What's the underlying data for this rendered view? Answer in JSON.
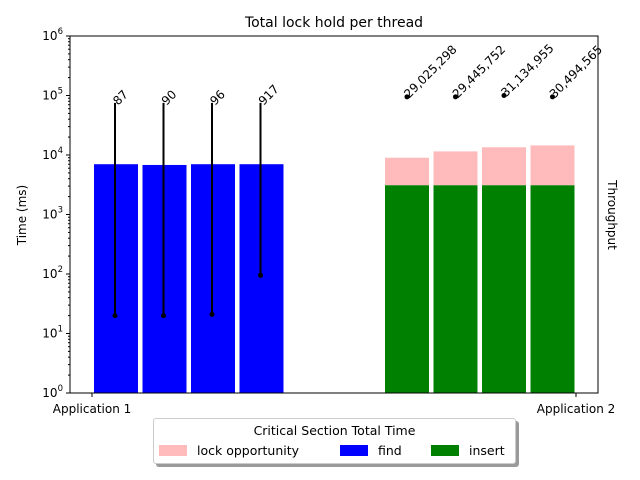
{
  "chart_data": {
    "type": "bar",
    "title": "Total lock hold per thread",
    "ylabel": "Time (ms)",
    "ylabel_right": "Throughput",
    "y_scale": "log",
    "ylim": [
      1,
      1000000
    ],
    "y_ticks": [
      {
        "value": 1,
        "base": "10",
        "exp": "0"
      },
      {
        "value": 10,
        "base": "10",
        "exp": "1"
      },
      {
        "value": 100,
        "base": "10",
        "exp": "2"
      },
      {
        "value": 1000,
        "base": "10",
        "exp": "3"
      },
      {
        "value": 10000,
        "base": "10",
        "exp": "4"
      },
      {
        "value": 100000,
        "base": "10",
        "exp": "5"
      },
      {
        "value": 1000000,
        "base": "10",
        "exp": "6"
      }
    ],
    "categories": [
      "Application 1",
      "Application 2"
    ],
    "legend": {
      "title": "Critical Section Total Time",
      "placement": "bottom-center",
      "entries": [
        {
          "label": "lock opportunity",
          "color": "#ffbbbb"
        },
        {
          "label": "find",
          "color": "#0000ff"
        },
        {
          "label": "insert",
          "color": "#008000"
        }
      ]
    },
    "groups": [
      {
        "category": "Application 1",
        "threads": [
          {
            "find": 7000,
            "error_low": 20,
            "error_high": 75000,
            "label": "87"
          },
          {
            "find": 6800,
            "error_low": 20,
            "error_high": 75000,
            "label": "90"
          },
          {
            "find": 7000,
            "error_low": 21,
            "error_high": 75000,
            "label": "96"
          },
          {
            "find": 7000,
            "error_low": 95,
            "error_high": 75000,
            "label": "917"
          }
        ]
      },
      {
        "category": "Application 2",
        "threads": [
          {
            "insert": 3100,
            "lock_opportunity_top": 9000,
            "point": 95000,
            "label": "29,025,298"
          },
          {
            "insert": 3100,
            "lock_opportunity_top": 11500,
            "point": 95000,
            "label": "29,445,752"
          },
          {
            "insert": 3100,
            "lock_opportunity_top": 13500,
            "point": 100000,
            "label": "31,134,955"
          },
          {
            "insert": 3100,
            "lock_opportunity_top": 14500,
            "point": 95000,
            "label": "30,494,565"
          }
        ]
      }
    ],
    "colors": {
      "find": "#0000ff",
      "insert": "#008000",
      "lock_opportunity": "#ffbbbb",
      "marks": "#000000"
    }
  }
}
